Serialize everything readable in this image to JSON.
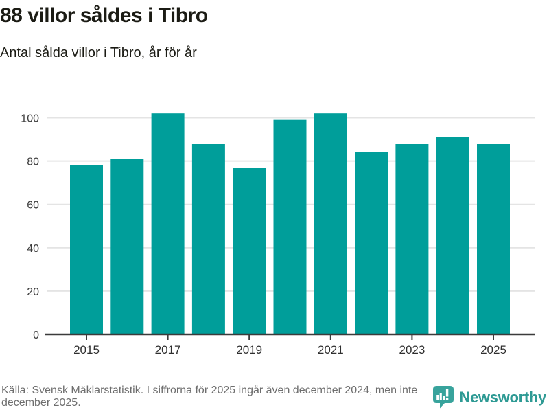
{
  "header": {
    "title": "88 villor såldes i Tibro",
    "subtitle": "Antal sålda villor i Tibro, år för år"
  },
  "chart_data": {
    "type": "bar",
    "categories": [
      2015,
      2016,
      2017,
      2018,
      2019,
      2020,
      2021,
      2022,
      2023,
      2024,
      2025
    ],
    "values": [
      78,
      81,
      102,
      88,
      77,
      99,
      102,
      84,
      88,
      91,
      88
    ],
    "title": "88 villor såldes i Tibro",
    "subtitle": "Antal sålda villor i Tibro, år för år",
    "xlabel": "",
    "ylabel": "",
    "ylim": [
      0,
      100
    ],
    "yticks": [
      0,
      20,
      40,
      60,
      80,
      100
    ],
    "xtick_labels": [
      "2015",
      "2017",
      "2019",
      "2021",
      "2023",
      "2025"
    ],
    "grid": true,
    "legend": false,
    "bar_color": "#009E9A",
    "grid_color": "#e4e4e4",
    "axis_color": "#3b3b3b",
    "y_label_color": "#3c3c3c",
    "x_label_color": "#2f2f2f"
  },
  "footer": {
    "source_text": "Källa: Svensk Mäklarstatistik. I siffrorna för 2025 ingår även december 2024, men inte december 2025.",
    "brand": {
      "name": "Newsworthy",
      "text_color": "#2E9A94",
      "icon_color": "#38A39C",
      "icon": "newsworthy-speech-bubble-barchart-icon"
    }
  }
}
